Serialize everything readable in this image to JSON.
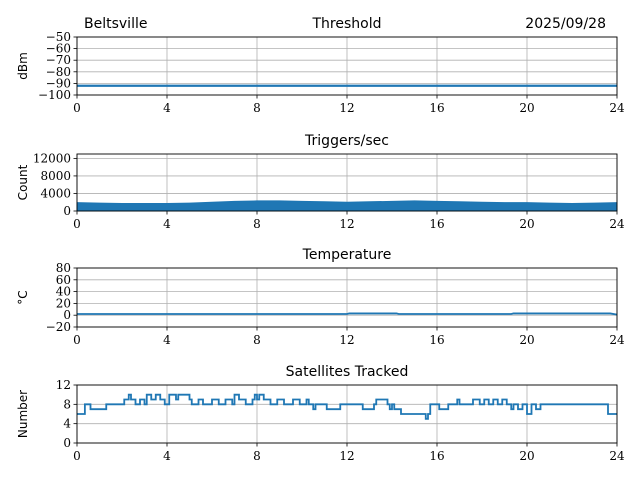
{
  "header": {
    "station": "Beltsville",
    "date": "2025/09/28"
  },
  "series_color": "#1f77b4",
  "chart_data": [
    {
      "type": "line",
      "title": "Threshold",
      "ylabel": "dBm",
      "xlim": [
        0,
        24
      ],
      "ylim": [
        -100,
        -50
      ],
      "xticks": [
        "0",
        "4",
        "8",
        "12",
        "16",
        "20",
        "24"
      ],
      "yticks": [
        "−50",
        "−60",
        "−70",
        "−80",
        "−90",
        "−100"
      ],
      "ytick_values": [
        -50,
        -60,
        -70,
        -80,
        -90,
        -100
      ],
      "grid": true,
      "x": [
        0,
        2,
        4,
        6,
        8,
        10,
        12,
        14,
        16,
        18,
        20,
        22,
        24
      ],
      "y": [
        -92,
        -92,
        -92,
        -92,
        -92,
        -92,
        -92,
        -92,
        -92,
        -92,
        -92,
        -92,
        -92
      ]
    },
    {
      "type": "area",
      "title": "Triggers/sec",
      "ylabel": "Count",
      "xlim": [
        0,
        24
      ],
      "ylim": [
        0,
        13000
      ],
      "xticks": [
        "0",
        "4",
        "8",
        "12",
        "16",
        "20",
        "24"
      ],
      "yticks": [
        "12000",
        "8000",
        "4000",
        "0"
      ],
      "ytick_values": [
        12000,
        8000,
        4000,
        0
      ],
      "grid": true,
      "x": [
        0,
        1,
        2,
        3,
        4,
        5,
        6,
        7,
        8,
        9,
        10,
        11,
        12,
        13,
        14,
        15,
        16,
        17,
        18,
        19,
        20,
        21,
        22,
        23,
        24
      ],
      "y_low": [
        800,
        900,
        850,
        800,
        900,
        1000,
        1100,
        1200,
        1250,
        1200,
        1150,
        1100,
        1100,
        1150,
        1200,
        1250,
        1200,
        1150,
        1100,
        1050,
        1000,
        950,
        900,
        900,
        950
      ],
      "y_high": [
        1900,
        1800,
        1700,
        1700,
        1700,
        1800,
        2000,
        2200,
        2300,
        2300,
        2200,
        2100,
        2000,
        2100,
        2200,
        2300,
        2200,
        2100,
        2000,
        1900,
        1900,
        1800,
        1700,
        1800,
        1900
      ]
    },
    {
      "type": "line",
      "title": "Temperature",
      "ylabel": "°C",
      "xlim": [
        0,
        24
      ],
      "ylim": [
        -20,
        80
      ],
      "xticks": [
        "0",
        "4",
        "8",
        "12",
        "16",
        "20",
        "24"
      ],
      "yticks": [
        "80",
        "60",
        "40",
        "20",
        "0",
        "−20"
      ],
      "ytick_values": [
        80,
        60,
        40,
        20,
        0,
        -20
      ],
      "grid": true,
      "x": [
        0,
        4,
        8,
        12,
        12.1,
        14.2,
        14.3,
        19.3,
        19.4,
        23.7,
        24
      ],
      "y": [
        2,
        2,
        2,
        2,
        3,
        3,
        2,
        2,
        3,
        3,
        1
      ]
    },
    {
      "type": "line",
      "title": "Satellites Tracked",
      "ylabel": "Number",
      "xlim": [
        0,
        24
      ],
      "ylim": [
        0,
        12
      ],
      "xticks": [
        "0",
        "4",
        "8",
        "12",
        "16",
        "20",
        "24"
      ],
      "yticks": [
        "12",
        "8",
        "4",
        "0"
      ],
      "ytick_values": [
        12,
        8,
        4,
        0
      ],
      "grid": true,
      "x": [
        0,
        0.3,
        0.35,
        0.5,
        0.6,
        1.3,
        1.4,
        2.0,
        2.1,
        2.3,
        2.4,
        2.6,
        2.8,
        3.0,
        3.1,
        3.3,
        3.5,
        3.7,
        3.9,
        4.1,
        4.3,
        4.4,
        4.5,
        5.0,
        5.1,
        5.4,
        5.6,
        6.0,
        6.3,
        6.6,
        6.9,
        7.0,
        7.2,
        7.5,
        7.8,
        7.9,
        8.0,
        8.1,
        8.3,
        8.6,
        8.9,
        9.2,
        9.6,
        9.9,
        10.2,
        10.3,
        10.5,
        10.6,
        11.0,
        11.1,
        11.7,
        11.8,
        12.6,
        12.7,
        13.2,
        13.3,
        13.8,
        13.9,
        14.0,
        14.1,
        14.3,
        14.4,
        15.3,
        15.5,
        15.6,
        15.7,
        16.0,
        16.1,
        16.5,
        16.6,
        16.9,
        17.0,
        17.4,
        17.6,
        17.9,
        18.1,
        18.3,
        18.5,
        18.7,
        18.9,
        19.1,
        19.3,
        19.4,
        19.6,
        19.8,
        20.0,
        20.2,
        20.4,
        20.6,
        20.8,
        21.0,
        21.2,
        21.6,
        22.0,
        22.4,
        22.8,
        23.4,
        23.6,
        24
      ],
      "y": [
        6,
        6,
        8,
        8,
        7,
        8,
        8,
        8,
        9,
        10,
        9,
        8,
        9,
        8,
        10,
        9,
        10,
        9,
        8,
        10,
        10,
        9,
        10,
        9,
        8,
        9,
        8,
        9,
        8,
        9,
        8,
        10,
        9,
        8,
        9,
        10,
        9,
        10,
        9,
        8,
        9,
        8,
        9,
        8,
        9,
        8,
        7,
        8,
        8,
        7,
        8,
        8,
        8,
        7,
        8,
        9,
        8,
        7,
        8,
        7,
        7,
        6,
        6,
        5,
        6,
        8,
        8,
        7,
        8,
        8,
        9,
        8,
        8,
        9,
        8,
        9,
        8,
        9,
        8,
        9,
        8,
        7,
        8,
        7,
        8,
        6,
        8,
        7,
        8,
        8,
        8,
        8,
        8,
        8,
        8,
        8,
        8,
        6,
        6
      ]
    }
  ]
}
